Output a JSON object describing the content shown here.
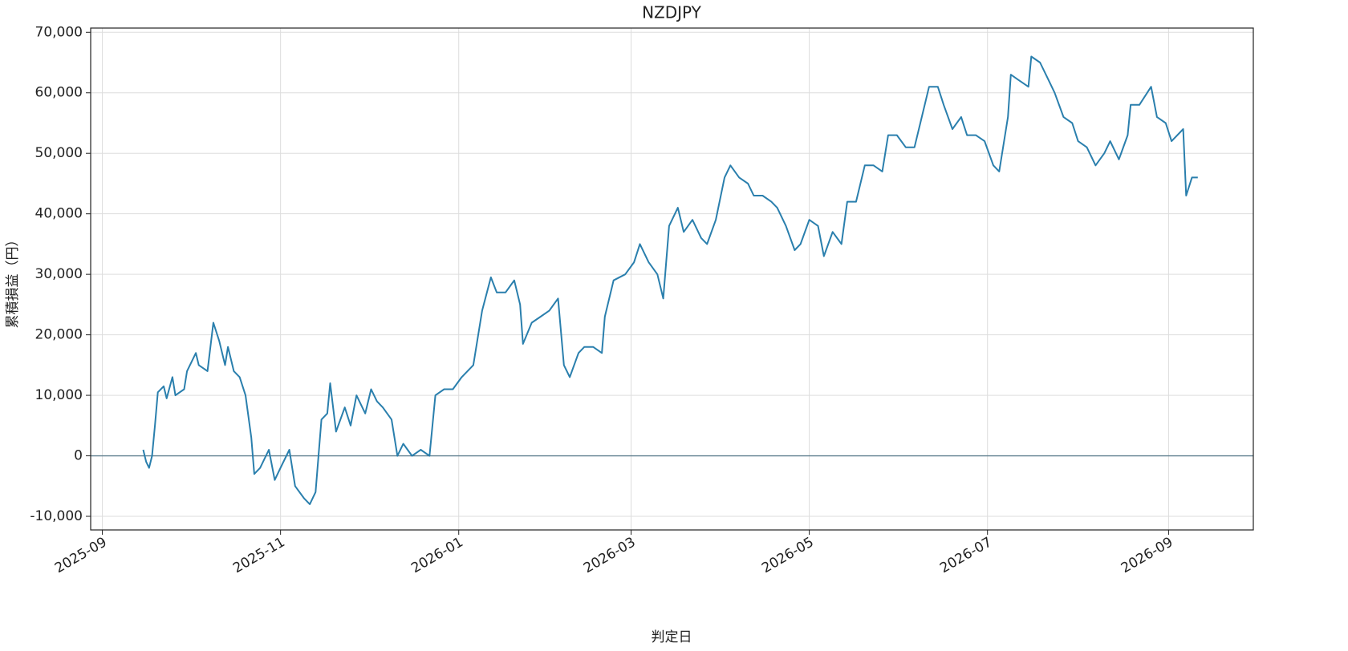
{
  "chart_data": {
    "type": "line",
    "title": "NZDJPY",
    "xlabel": "判定日",
    "ylabel": "累積損益（円）",
    "x": [
      "2025-09-15",
      "2025-09-16",
      "2025-09-17",
      "2025-09-18",
      "2025-09-19",
      "2025-09-20",
      "2025-09-22",
      "2025-09-23",
      "2025-09-25",
      "2025-09-26",
      "2025-09-29",
      "2025-09-30",
      "2025-10-03",
      "2025-10-04",
      "2025-10-07",
      "2025-10-09",
      "2025-10-11",
      "2025-10-13",
      "2025-10-14",
      "2025-10-16",
      "2025-10-18",
      "2025-10-20",
      "2025-10-22",
      "2025-10-23",
      "2025-10-25",
      "2025-10-28",
      "2025-10-30",
      "2025-11-01",
      "2025-11-04",
      "2025-11-06",
      "2025-11-09",
      "2025-11-11",
      "2025-11-13",
      "2025-11-15",
      "2025-11-17",
      "2025-11-18",
      "2025-11-20",
      "2025-11-23",
      "2025-11-25",
      "2025-11-27",
      "2025-11-30",
      "2025-12-02",
      "2025-12-04",
      "2025-12-06",
      "2025-12-09",
      "2025-12-11",
      "2025-12-13",
      "2025-12-16",
      "2025-12-19",
      "2025-12-22",
      "2025-12-24",
      "2025-12-27",
      "2025-12-30",
      "2026-01-02",
      "2026-01-06",
      "2026-01-09",
      "2026-01-12",
      "2026-01-14",
      "2026-01-17",
      "2026-01-20",
      "2026-01-22",
      "2026-01-23",
      "2026-01-26",
      "2026-01-29",
      "2026-02-01",
      "2026-02-04",
      "2026-02-06",
      "2026-02-08",
      "2026-02-11",
      "2026-02-13",
      "2026-02-16",
      "2026-02-19",
      "2026-02-20",
      "2026-02-23",
      "2026-02-27",
      "2026-03-02",
      "2026-03-04",
      "2026-03-07",
      "2026-03-10",
      "2026-03-12",
      "2026-03-14",
      "2026-03-17",
      "2026-03-19",
      "2026-03-22",
      "2026-03-25",
      "2026-03-27",
      "2026-03-30",
      "2026-04-02",
      "2026-04-04",
      "2026-04-07",
      "2026-04-10",
      "2026-04-12",
      "2026-04-15",
      "2026-04-18",
      "2026-04-20",
      "2026-04-23",
      "2026-04-26",
      "2026-04-28",
      "2026-05-01",
      "2026-05-04",
      "2026-05-06",
      "2026-05-09",
      "2026-05-12",
      "2026-05-14",
      "2026-05-17",
      "2026-05-20",
      "2026-05-23",
      "2026-05-26",
      "2026-05-28",
      "2026-05-31",
      "2026-06-03",
      "2026-06-06",
      "2026-06-08",
      "2026-06-11",
      "2026-06-14",
      "2026-06-16",
      "2026-06-19",
      "2026-06-22",
      "2026-06-24",
      "2026-06-27",
      "2026-06-30",
      "2026-07-03",
      "2026-07-05",
      "2026-07-08",
      "2026-07-09",
      "2026-07-12",
      "2026-07-15",
      "2026-07-16",
      "2026-07-19",
      "2026-07-22",
      "2026-07-24",
      "2026-07-27",
      "2026-07-30",
      "2026-08-01",
      "2026-08-04",
      "2026-08-07",
      "2026-08-10",
      "2026-08-12",
      "2026-08-15",
      "2026-08-18",
      "2026-08-19",
      "2026-08-22",
      "2026-08-26",
      "2026-08-28",
      "2026-08-31",
      "2026-09-02",
      "2026-09-06",
      "2026-09-07",
      "2026-09-09",
      "2026-09-11"
    ],
    "series": [
      {
        "name": "NZDJPY",
        "color": "#2a7fad",
        "values": [
          1000,
          -1000,
          -2000,
          0,
          5000,
          10500,
          11500,
          9500,
          13000,
          10000,
          11000,
          14000,
          17000,
          15000,
          14000,
          22000,
          19000,
          15000,
          18000,
          14000,
          13000,
          10000,
          3000,
          -3000,
          -2000,
          1000,
          -4000,
          -2000,
          1000,
          -5000,
          -7000,
          -8000,
          -6000,
          6000,
          7000,
          12000,
          4000,
          8000,
          5000,
          10000,
          7000,
          11000,
          9000,
          8000,
          6000,
          0,
          2000,
          0,
          1000,
          0,
          10000,
          11000,
          11000,
          13000,
          15000,
          24000,
          29500,
          27000,
          27000,
          29000,
          25000,
          18500,
          22000,
          23000,
          24000,
          26000,
          15000,
          13000,
          17000,
          18000,
          18000,
          17000,
          23000,
          29000,
          30000,
          32000,
          35000,
          32000,
          30000,
          26000,
          38000,
          41000,
          37000,
          39000,
          36000,
          35000,
          39000,
          46000,
          48000,
          46000,
          45000,
          43000,
          43000,
          42000,
          41000,
          38000,
          34000,
          35000,
          39000,
          38000,
          33000,
          37000,
          35000,
          42000,
          42000,
          48000,
          48000,
          47000,
          53000,
          53000,
          51000,
          51000,
          55000,
          61000,
          61000,
          58000,
          54000,
          56000,
          53000,
          53000,
          52000,
          48000,
          47000,
          56000,
          63000,
          62000,
          61000,
          66000,
          65000,
          62000,
          60000,
          56000,
          55000,
          52000,
          51000,
          48000,
          50000,
          52000,
          49000,
          53000,
          58000,
          58000,
          61000,
          56000,
          55000,
          52000,
          54000,
          43000,
          46000,
          46000
        ]
      }
    ],
    "xlim": [
      "2025-08-28",
      "2026-09-30"
    ],
    "xticks": [
      {
        "value": "2025-09-01",
        "label": "2025-09"
      },
      {
        "value": "2025-11-01",
        "label": "2025-11"
      },
      {
        "value": "2026-01-01",
        "label": "2026-01"
      },
      {
        "value": "2026-03-01",
        "label": "2026-03"
      },
      {
        "value": "2026-05-01",
        "label": "2026-05"
      },
      {
        "value": "2026-07-01",
        "label": "2026-07"
      },
      {
        "value": "2026-09-01",
        "label": "2026-09"
      }
    ],
    "ylim": [
      -12250,
      70700
    ],
    "yticks": [
      {
        "value": -10000,
        "label": "-10,000"
      },
      0,
      {
        "value": 10000,
        "label": "10,000"
      },
      {
        "value": 20000,
        "label": "20,000"
      },
      {
        "value": 30000,
        "label": "30,000"
      },
      {
        "value": 40000,
        "label": "40,000"
      },
      {
        "value": 50000,
        "label": "50,000"
      },
      {
        "value": 60000,
        "label": "60,000"
      },
      {
        "value": 70000,
        "label": "70,000"
      }
    ],
    "grid": true,
    "hline": 0
  }
}
